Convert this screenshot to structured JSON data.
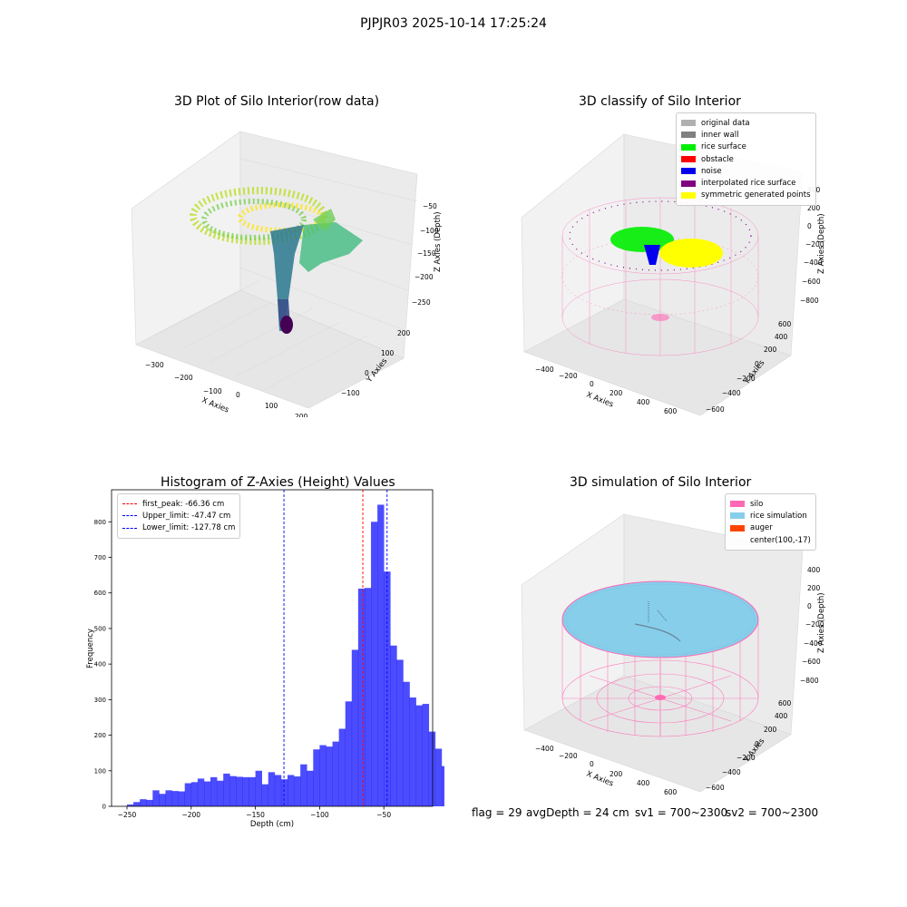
{
  "suptitle": "PJPJR03 2025-10-14 17:25:24",
  "colors": {
    "viridis_low": "#440154",
    "viridis_mid": "#21918c",
    "viridis_high": "#fde725",
    "silo": "#ff69b4",
    "rice": "#87ceeb",
    "hist": "#0000ff"
  },
  "panels": {
    "raw": {
      "title": "3D Plot of Silo Interior(row data)",
      "xlabel": "X Axies",
      "ylabel": "Y Axies",
      "zlabel": "Z Axies (Depth)",
      "xticks": [
        "−300",
        "−200",
        "−100",
        "0",
        "100",
        "200"
      ],
      "yticks": [
        "−100",
        "0",
        "100",
        "200"
      ],
      "zticks": [
        "−50",
        "−100",
        "−150",
        "−200",
        "−250"
      ]
    },
    "classify": {
      "title": "3D classify of Silo Interior",
      "xlabel": "X Axies",
      "ylabel": "Y Axies",
      "zlabel": "Z Axies (Depth)",
      "xticks": [
        "−400",
        "−200",
        "0",
        "200",
        "400",
        "600"
      ],
      "yticks": [
        "−600",
        "−400",
        "−200",
        "0",
        "200",
        "400",
        "600"
      ],
      "zticks": [
        "400",
        "200",
        "0",
        "−200",
        "−400",
        "−600",
        "−800"
      ],
      "legend": [
        {
          "label": "original data",
          "color": "#b0b0b0"
        },
        {
          "label": "inner wall",
          "color": "#808080"
        },
        {
          "label": "rice surface",
          "color": "#00ee00"
        },
        {
          "label": "obstacle",
          "color": "#ff0000"
        },
        {
          "label": "noise",
          "color": "#0000ee"
        },
        {
          "label": "interpolated rice surface",
          "color": "#800080"
        },
        {
          "label": "symmetric generated points",
          "color": "#ffff00"
        }
      ]
    },
    "simulation": {
      "title": "3D simulation of Silo Interior",
      "xlabel": "X Axies",
      "ylabel": "Y Axies",
      "zlabel": "Z Axies (Depth)",
      "xticks": [
        "−400",
        "−200",
        "0",
        "200",
        "400",
        "600"
      ],
      "yticks": [
        "−600",
        "−400",
        "−200",
        "0",
        "200",
        "400",
        "600"
      ],
      "zticks": [
        "400",
        "200",
        "0",
        "−200",
        "−400",
        "−600",
        "−800"
      ],
      "legend": [
        {
          "label": "silo",
          "color": "#ff69b4"
        },
        {
          "label": "rice simulation",
          "color": "#87ceeb"
        },
        {
          "label": "auger",
          "color": "#ff4500"
        },
        {
          "label": "center(100,-17)",
          "color": ""
        }
      ]
    }
  },
  "footer": {
    "flag": "flag = 29",
    "avg_depth": "avgDepth = 24 cm",
    "sv1": "sv1 = 700~2300",
    "sv2": "sv2 = 700~2300"
  },
  "chart_data": [
    {
      "type": "histogram",
      "title": "Histogram of Z-Axies (Height) Values",
      "xlabel": "Depth (cm)",
      "ylabel": "Frequency",
      "xlim": [
        -262,
        -12
      ],
      "ylim": [
        0,
        890
      ],
      "xticks": [
        -250,
        -200,
        -150,
        -100,
        -50
      ],
      "xtick_labels": [
        "−250",
        "−200",
        "−150",
        "−100",
        "−50"
      ],
      "yticks": [
        0,
        100,
        200,
        300,
        400,
        500,
        600,
        700,
        800
      ],
      "bin_start": -250,
      "bin_width": 5,
      "counts": [
        5,
        12,
        20,
        18,
        45,
        35,
        45,
        43,
        42,
        65,
        68,
        78,
        70,
        82,
        72,
        92,
        85,
        83,
        82,
        82,
        100,
        62,
        96,
        88,
        76,
        88,
        84,
        118,
        100,
        160,
        172,
        168,
        182,
        218,
        295,
        440,
        612,
        614,
        800,
        848,
        660,
        452,
        412,
        350,
        306,
        284,
        288,
        210,
        162,
        113
      ],
      "series_name": "Frequency",
      "vlines": [
        {
          "label": "first_peak: -66.36 cm",
          "value": -66.36,
          "color": "#ff0000"
        },
        {
          "label": "Upper_limit: -47.47 cm",
          "value": -47.47,
          "color": "#0000ff"
        },
        {
          "label": "Lower_limit: -127.78 cm",
          "value": -127.78,
          "color": "#0000ff"
        }
      ],
      "legend_position": "upper-left",
      "grid": false
    }
  ]
}
